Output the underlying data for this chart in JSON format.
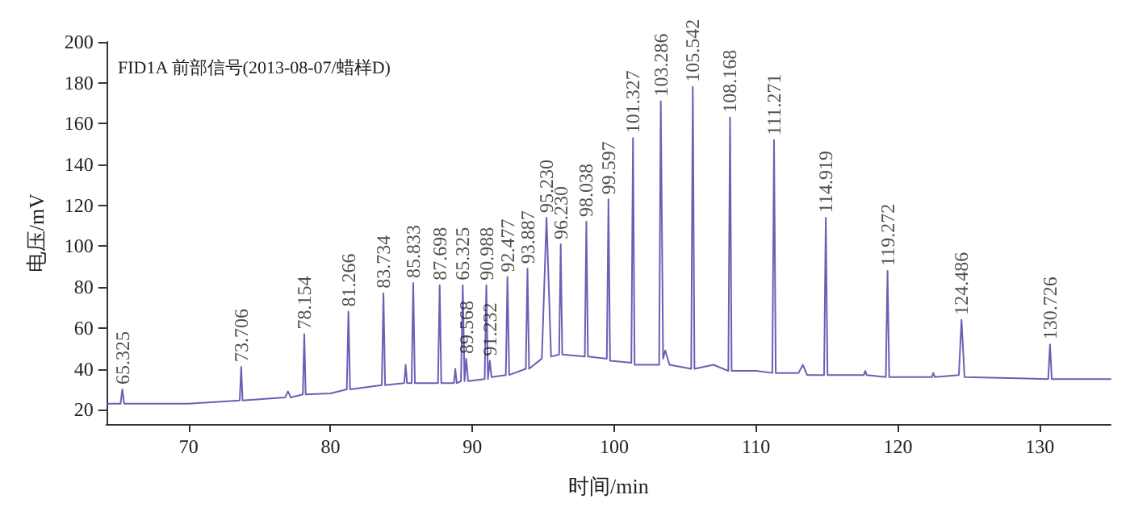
{
  "chart_data": {
    "type": "line",
    "title": "FID1A 前部信号(2013-08-07/蜡样D)",
    "xlabel": "时间/min",
    "ylabel": "电压/mV",
    "xlim": [
      64.2,
      135
    ],
    "xticks": [
      70,
      80,
      90,
      100,
      110,
      120,
      130
    ],
    "ylim": [
      13,
      200
    ],
    "yticks": [
      20,
      40,
      60,
      80,
      100,
      120,
      140,
      160,
      180,
      200
    ],
    "grid": false,
    "marker": "none",
    "line_style": "solid",
    "series": [
      {
        "color": "#6b5fb5",
        "x": [
          64.3,
          65.2,
          65.325,
          65.45,
          70,
          73.6,
          73.706,
          73.8,
          76.8,
          77,
          77.2,
          78.05,
          78.154,
          78.25,
          80,
          81.15,
          81.266,
          81.38,
          83.62,
          83.734,
          83.85,
          85.2,
          85.3,
          85.4,
          85.72,
          85.833,
          85.95,
          87.58,
          87.698,
          87.81,
          88.7,
          88.8,
          88.9,
          89.2,
          89.325,
          89.45,
          89.568,
          89.7,
          90.87,
          90.988,
          91.1,
          91.232,
          91.35,
          92.36,
          92.477,
          92.6,
          93.77,
          93.887,
          94.0,
          94.9,
          95.23,
          95.55,
          96.12,
          96.23,
          96.34,
          97.93,
          98.038,
          98.15,
          99.48,
          99.597,
          99.71,
          101.21,
          101.327,
          101.44,
          103.17,
          103.286,
          103.45,
          103.6,
          103.9,
          105.43,
          105.542,
          105.66,
          107,
          108.05,
          108.168,
          108.28,
          110,
          111.15,
          111.271,
          111.39,
          113,
          113.3,
          113.6,
          114.8,
          114.919,
          115.04,
          117.6,
          117.7,
          117.8,
          119.15,
          119.272,
          119.39,
          122.4,
          122.5,
          122.6,
          124.3,
          124.486,
          124.7,
          130.6,
          130.726,
          130.85,
          135
        ],
        "values": [
          23,
          23,
          30,
          23,
          23,
          24.5,
          41,
          24.5,
          26,
          29,
          26,
          27.5,
          57,
          27.5,
          28,
          30,
          68,
          30,
          32,
          77,
          32,
          33,
          42,
          33,
          33,
          82,
          33,
          33,
          81,
          33,
          33,
          40,
          33,
          34,
          81,
          34,
          45,
          34,
          35,
          81,
          35,
          44,
          36,
          37,
          85,
          37,
          40,
          89,
          40,
          45,
          114,
          46,
          47,
          101,
          47,
          46,
          112,
          46,
          45,
          123,
          44,
          43,
          153,
          42,
          42,
          171,
          45,
          49,
          42,
          40,
          178,
          40,
          42,
          39,
          163,
          39,
          39,
          38,
          152,
          38,
          38,
          42,
          37,
          37,
          114,
          37,
          37,
          39,
          37,
          36,
          88,
          36,
          36,
          38,
          36,
          37,
          64,
          36,
          35,
          52,
          35,
          35
        ]
      }
    ],
    "annotations": [
      {
        "text": "65.325",
        "x": 65.325,
        "y": 30
      },
      {
        "text": "73.706",
        "x": 73.706,
        "y": 41
      },
      {
        "text": "78.154",
        "x": 78.154,
        "y": 57
      },
      {
        "text": "81.266",
        "x": 81.266,
        "y": 68
      },
      {
        "text": "83.734",
        "x": 83.734,
        "y": 77
      },
      {
        "text": "85.833",
        "x": 85.833,
        "y": 82
      },
      {
        "text": "87.698",
        "x": 87.698,
        "y": 81
      },
      {
        "text": "65.325",
        "x": 89.325,
        "y": 81
      },
      {
        "text": "89.568",
        "x": 89.568,
        "y": 45
      },
      {
        "text": "90.988",
        "x": 90.988,
        "y": 81
      },
      {
        "text": "91.232",
        "x": 91.232,
        "y": 44
      },
      {
        "text": "92.477",
        "x": 92.477,
        "y": 85
      },
      {
        "text": "93.887",
        "x": 93.887,
        "y": 89
      },
      {
        "text": "95.230",
        "x": 95.23,
        "y": 114
      },
      {
        "text": "96.230",
        "x": 96.23,
        "y": 101
      },
      {
        "text": "98.038",
        "x": 98.038,
        "y": 112
      },
      {
        "text": "99.597",
        "x": 99.597,
        "y": 123
      },
      {
        "text": "101.327",
        "x": 101.327,
        "y": 153
      },
      {
        "text": "103.286",
        "x": 103.286,
        "y": 171
      },
      {
        "text": "105.542",
        "x": 105.542,
        "y": 178
      },
      {
        "text": "108.168",
        "x": 108.168,
        "y": 163
      },
      {
        "text": "111.271",
        "x": 111.271,
        "y": 152
      },
      {
        "text": "114.919",
        "x": 114.919,
        "y": 114
      },
      {
        "text": "119.272",
        "x": 119.272,
        "y": 88
      },
      {
        "text": "124.486",
        "x": 124.486,
        "y": 64
      },
      {
        "text": "130.726",
        "x": 130.726,
        "y": 52
      }
    ]
  }
}
